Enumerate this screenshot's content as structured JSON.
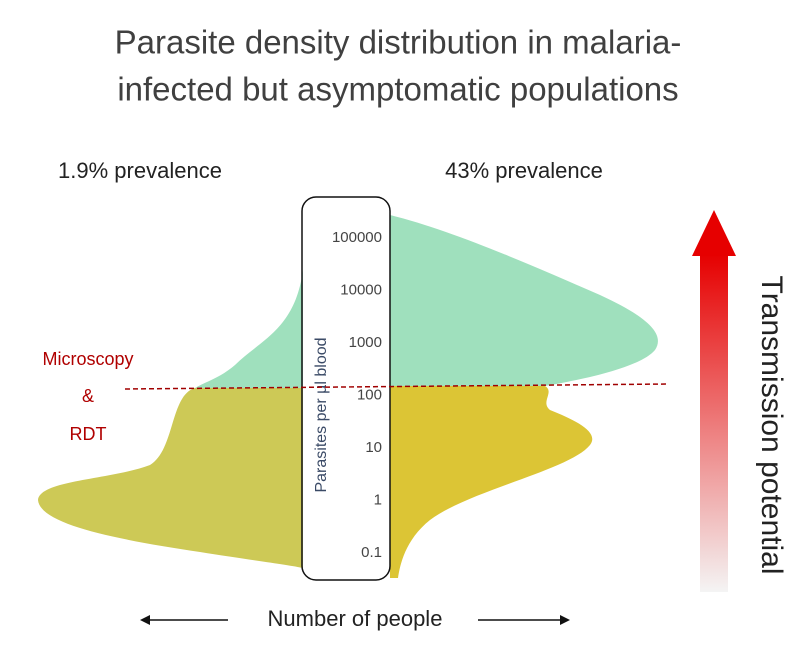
{
  "title": {
    "lines": [
      "Parasite density distribution in malaria-",
      "infected but asymptomatic populations"
    ]
  },
  "left_panel": {
    "label": "1.9% prevalence"
  },
  "right_panel": {
    "label": "43% prevalence"
  },
  "density_axis": {
    "label": "Parasites per µl blood",
    "ticks": [
      100000,
      10000,
      1000,
      100,
      10,
      1,
      0.1
    ]
  },
  "threshold": {
    "lines": [
      "Microscopy",
      "&",
      "RDT"
    ]
  },
  "x_axis": {
    "label": "Number of people"
  },
  "side_arrow": {
    "label": "Transmission potential"
  }
}
